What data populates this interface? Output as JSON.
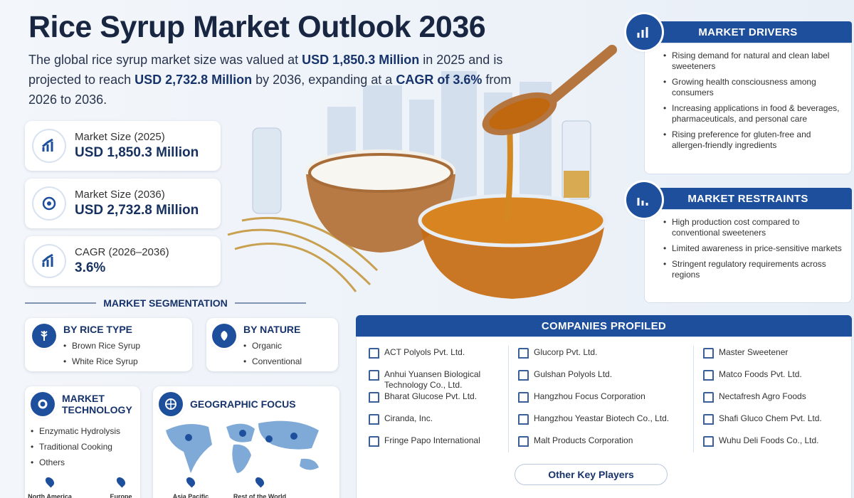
{
  "title": "Rice Syrup Market Outlook 2036",
  "intro": [
    "The global rice syrup market size was valued at ",
    "USD 1,850.3 Million",
    " in 2025 and is projected to reach ",
    "USD 2,732.8 Million",
    " by 2036, expanding at a ",
    "CAGR of 3.6%",
    " from 2026 to 2036."
  ],
  "stats": [
    {
      "label": "Market Size (2025)",
      "value": "USD 1,850.3 Million"
    },
    {
      "label": "Market Size (2036)",
      "value": "USD 2,732.8 Million"
    },
    {
      "label": "CAGR (2026–2036)",
      "value": "3.6%"
    }
  ],
  "segmentation": {
    "title": "MARKET SEGMENTATION",
    "rice_type": {
      "title": "BY RICE TYPE",
      "items": [
        "Brown Rice Syrup",
        "White Rice Syrup"
      ]
    },
    "nature": {
      "title": "BY NATURE",
      "items": [
        "Organic",
        "Conventional"
      ]
    },
    "technology": {
      "title": "MARKET TECHNOLOGY",
      "items": [
        "Enzymatic Hydrolysis",
        "Traditional Cooking",
        "Others"
      ]
    },
    "geography": {
      "title": "GEOGRAPHIC FOCUS",
      "items": [
        "North America",
        "Europe",
        "Asia Pacific",
        "Rest of the World"
      ]
    }
  },
  "drivers": {
    "title": "MARKET DRIVERS",
    "items": [
      "Rising demand for natural and clean label sweeteners",
      "Growing health consciousness among consumers",
      "Increasing applications in food & beverages, pharmaceuticals, and personal care",
      "Rising preference for gluten-free and allergen-friendly ingredients"
    ]
  },
  "restraints": {
    "title": "MARKET RESTRAINTS",
    "items": [
      "High production cost compared to conventional sweeteners",
      "Limited awareness in price-sensitive markets",
      "Stringent regulatory requirements across regions"
    ]
  },
  "companies": {
    "title": "COMPANIES PROFILED",
    "columns": [
      [
        "ACT Polyols Pvt. Ltd.",
        "Anhui Yuansen Biological Technology Co., Ltd.",
        "Bharat Glucose Pvt. Ltd.",
        "Ciranda, Inc.",
        "Fringe Papo International"
      ],
      [
        "Glucorp Pvt. Ltd.",
        "Gulshan Polyols Ltd.",
        "Hangzhou Focus Corporation",
        "Hangzhou Yeastar Biotech Co., Ltd.",
        "Malt Products Corporation"
      ],
      [
        "Master Sweetener",
        "Matco Foods Pvt. Ltd.",
        "Nectafresh Agro Foods",
        "Shafi Gluco Chem Pvt. Ltd.",
        "Wuhu Deli Foods Co., Ltd."
      ]
    ],
    "more": "Other Key Players"
  }
}
